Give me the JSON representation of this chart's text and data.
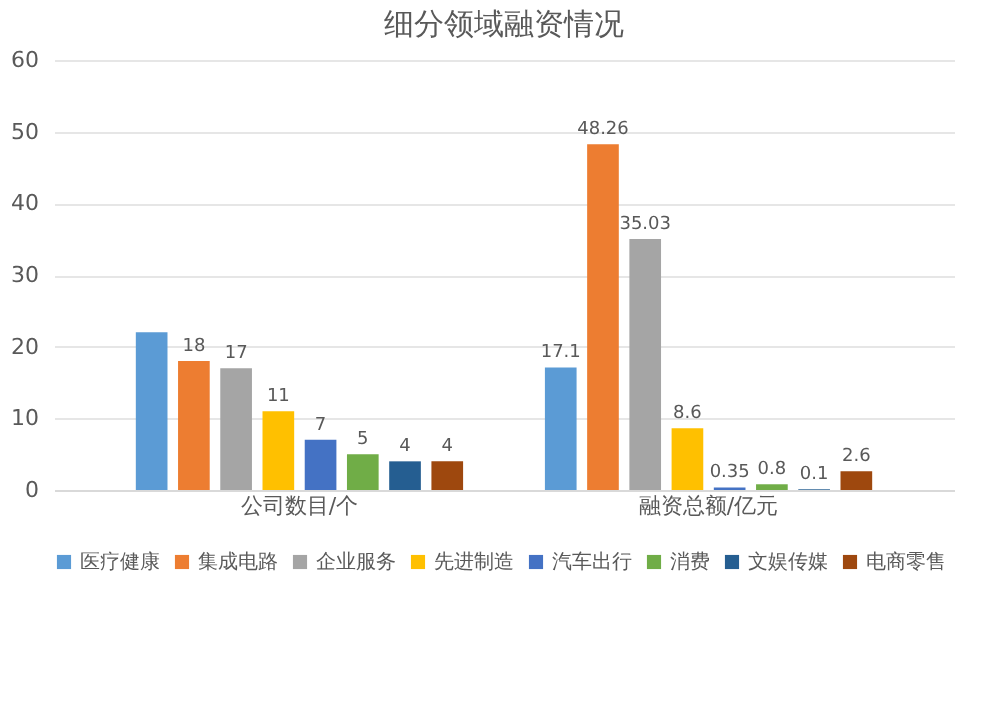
{
  "chart_data": {
    "type": "bar",
    "title": "细分领域融资情况",
    "categories": [
      "公司数目/个",
      "融资总额/亿元"
    ],
    "series": [
      {
        "name": "医疗健康",
        "color": "#5b9bd5",
        "values": [
          22,
          17.1
        ],
        "value_labels": [
          null,
          "17.1"
        ]
      },
      {
        "name": "集成电路",
        "color": "#ed7d31",
        "values": [
          18,
          48.26
        ],
        "value_labels": [
          "18",
          "48.26"
        ]
      },
      {
        "name": "企业服务",
        "color": "#a5a5a5",
        "values": [
          17,
          35.03
        ],
        "value_labels": [
          "17",
          "35.03"
        ]
      },
      {
        "name": "先进制造",
        "color": "#ffc000",
        "values": [
          11,
          8.6
        ],
        "value_labels": [
          "11",
          "8.6"
        ]
      },
      {
        "name": "汽车出行",
        "color": "#4472c4",
        "values": [
          7,
          0.35
        ],
        "value_labels": [
          "7",
          "0.35"
        ]
      },
      {
        "name": "消费",
        "color": "#70ad47",
        "values": [
          5,
          0.8
        ],
        "value_labels": [
          "5",
          "0.8"
        ]
      },
      {
        "name": "文娱传媒",
        "color": "#255e91",
        "values": [
          4,
          0.1
        ],
        "value_labels": [
          "4",
          "0.1"
        ]
      },
      {
        "name": "电商零售",
        "color": "#9e480e",
        "values": [
          4,
          2.6
        ],
        "value_labels": [
          "4",
          "2.6"
        ]
      }
    ],
    "ylim": [
      0,
      60
    ],
    "yticks": [
      0,
      10,
      20,
      30,
      40,
      50,
      60
    ],
    "grid": "y",
    "legend": "bottom"
  }
}
